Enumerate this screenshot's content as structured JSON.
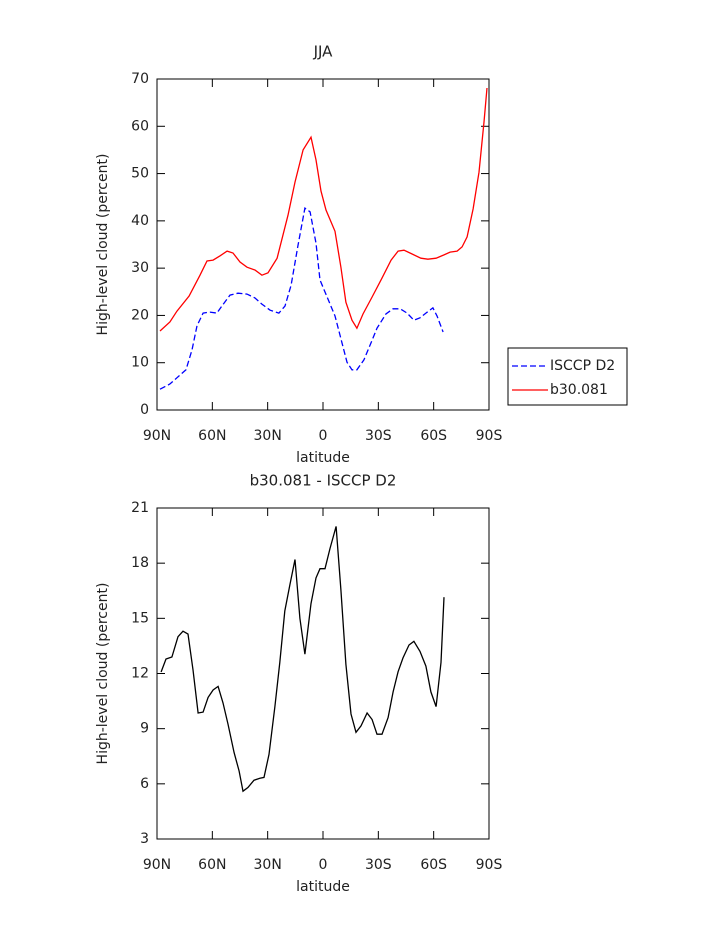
{
  "chart_data": [
    {
      "type": "line",
      "title": "JJA",
      "xlabel": "latitude",
      "ylabel": "High-level cloud (percent)",
      "xlim": [
        90,
        -90
      ],
      "xticks": [
        {
          "value": 90,
          "label": "90N"
        },
        {
          "value": 60,
          "label": "60N"
        },
        {
          "value": 30,
          "label": "30N"
        },
        0,
        {
          "value": -30,
          "label": "30S"
        },
        {
          "value": -60,
          "label": "60S"
        },
        {
          "value": -90,
          "label": "90S"
        }
      ],
      "ylim": [
        0,
        70
      ],
      "yticks": [
        0,
        10,
        20,
        30,
        40,
        50,
        60,
        70
      ],
      "legend": "right",
      "series": [
        {
          "name": "ISCCP D2",
          "color": "#0000ff",
          "line_style": "dashed",
          "x": [
            88.4,
            83.0,
            79.2,
            74.3,
            71.0,
            68.3,
            65.0,
            61.3,
            57.5,
            54.8,
            50.4,
            46.1,
            41.2,
            36.9,
            33.1,
            28.7,
            23.9,
            20.6,
            17.3,
            13.6,
            9.8,
            7.0,
            3.8,
            1.6,
            -2.2,
            -6.5,
            -10.3,
            -13.0,
            -15.7,
            -18.4,
            -22.2,
            -26.0,
            -29.3,
            -34.1,
            -38.0,
            -41.8,
            -45.6,
            -49.3,
            -52.6,
            -55.8,
            -59.6,
            -61.8,
            -65.1
          ],
          "values": [
            4.4,
            5.5,
            6.8,
            8.5,
            12.7,
            17.8,
            20.5,
            20.7,
            20.5,
            22.0,
            24.3,
            24.7,
            24.5,
            23.7,
            22.4,
            21.1,
            20.5,
            22.0,
            26.4,
            34.7,
            42.7,
            41.9,
            35.3,
            27.5,
            23.9,
            19.9,
            14.2,
            10.1,
            8.5,
            8.5,
            10.6,
            14.2,
            17.3,
            20.3,
            21.4,
            21.4,
            20.5,
            19.0,
            19.5,
            20.5,
            21.6,
            19.9,
            16.5
          ]
        },
        {
          "name": "b30.081",
          "color": "#ff0000",
          "line_style": "solid",
          "x": [
            88.4,
            83.0,
            79.2,
            72.6,
            66.7,
            62.9,
            59.6,
            55.8,
            52.0,
            48.8,
            45.0,
            41.2,
            36.9,
            33.1,
            29.8,
            24.9,
            19.0,
            15.2,
            10.8,
            6.5,
            3.8,
            1.1,
            -1.6,
            -6.5,
            -9.7,
            -12.4,
            -15.7,
            -18.4,
            -21.7,
            -26.6,
            -32.0,
            -36.9,
            -40.7,
            -43.9,
            -48.3,
            -53.1,
            -56.9,
            -61.3,
            -65.6,
            -68.9,
            -72.7,
            -75.4,
            -78.1,
            -81.4,
            -84.6,
            -87.3,
            -88.9
          ],
          "values": [
            16.7,
            18.6,
            20.9,
            24.1,
            28.5,
            31.5,
            31.7,
            32.6,
            33.6,
            33.2,
            31.3,
            30.2,
            29.6,
            28.5,
            29.0,
            32.1,
            41.2,
            48.2,
            55.0,
            57.7,
            52.9,
            46.3,
            42.3,
            37.8,
            30.2,
            22.8,
            19.0,
            17.3,
            20.3,
            23.9,
            27.9,
            31.7,
            33.6,
            33.8,
            33.0,
            32.1,
            31.9,
            32.1,
            32.8,
            33.4,
            33.6,
            34.5,
            36.6,
            42.5,
            50.3,
            60.9,
            68.1
          ]
        }
      ]
    },
    {
      "type": "line",
      "title": "b30.081 - ISCCP D2",
      "xlabel": "latitude",
      "ylabel": "High-level cloud (percent)",
      "xlim": [
        90,
        -90
      ],
      "xticks": [
        {
          "value": 90,
          "label": "90N"
        },
        {
          "value": 60,
          "label": "60N"
        },
        {
          "value": 30,
          "label": "30N"
        },
        0,
        {
          "value": -30,
          "label": "30S"
        },
        {
          "value": -60,
          "label": "60S"
        },
        {
          "value": -90,
          "label": "90S"
        }
      ],
      "ylim": [
        3,
        21
      ],
      "yticks": [
        3,
        6,
        9,
        12,
        15,
        18,
        21
      ],
      "color": "#000000",
      "x": [
        87.8,
        85.1,
        81.9,
        78.6,
        75.9,
        73.2,
        70.5,
        67.7,
        65.0,
        62.3,
        59.6,
        56.9,
        54.2,
        51.5,
        48.2,
        45.5,
        43.4,
        40.7,
        37.4,
        34.2,
        32.0,
        29.3,
        26.1,
        23.4,
        20.7,
        18.0,
        15.2,
        12.5,
        9.8,
        6.5,
        3.8,
        1.6,
        -1.1,
        -3.8,
        -7.1,
        -9.7,
        -12.4,
        -15.2,
        -17.9,
        -20.6,
        -23.9,
        -26.6,
        -29.3,
        -32.0,
        -35.3,
        -38.0,
        -40.7,
        -43.4,
        -46.6,
        -49.3,
        -52.6,
        -55.8,
        -58.5,
        -61.3,
        -64.0,
        -65.6
      ],
      "values": [
        12.08,
        12.79,
        12.9,
        14.0,
        14.3,
        14.15,
        12.2,
        9.85,
        9.9,
        10.7,
        11.1,
        11.3,
        10.4,
        9.25,
        7.7,
        6.7,
        5.6,
        5.8,
        6.2,
        6.3,
        6.35,
        7.6,
        10.2,
        12.6,
        15.4,
        16.8,
        18.2,
        15.0,
        13.05,
        15.8,
        17.2,
        17.7,
        17.7,
        18.8,
        20.0,
        16.55,
        12.5,
        9.8,
        8.8,
        9.15,
        9.85,
        9.5,
        8.7,
        8.7,
        9.6,
        11.0,
        12.1,
        12.85,
        13.55,
        13.75,
        13.2,
        12.4,
        11.0,
        10.2,
        12.6,
        16.15
      ]
    }
  ]
}
